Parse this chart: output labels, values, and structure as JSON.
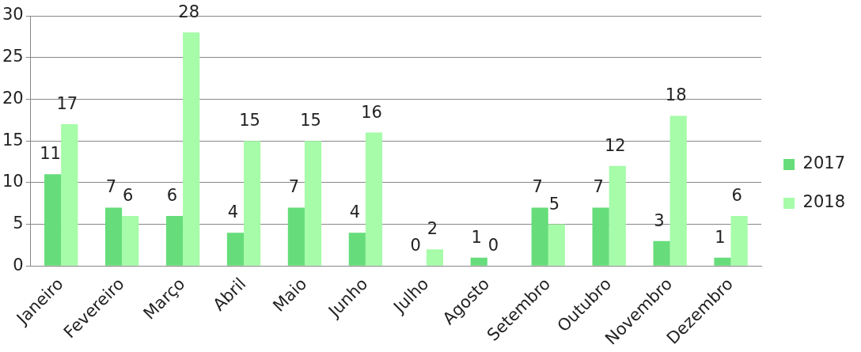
{
  "chart_data": {
    "type": "bar",
    "categories": [
      "Janeiro",
      "Fevereiro",
      "Março",
      "Abril",
      "Maio",
      "Junho",
      "Julho",
      "Agosto",
      "Setembro",
      "Outubro",
      "Novembro",
      "Dezembro"
    ],
    "series": [
      {
        "name": "2017",
        "color": "#66dd7a",
        "values": [
          11,
          7,
          6,
          4,
          7,
          4,
          0,
          1,
          7,
          7,
          3,
          1
        ]
      },
      {
        "name": "2018",
        "color": "#a6fca8",
        "values": [
          17,
          6,
          28,
          15,
          15,
          16,
          2,
          0,
          5,
          12,
          18,
          6
        ]
      }
    ],
    "ylim": [
      0,
      30
    ],
    "yticks": [
      0,
      5,
      10,
      15,
      20,
      25,
      30
    ],
    "grid": "y",
    "legend": "right",
    "data_labels": true
  }
}
